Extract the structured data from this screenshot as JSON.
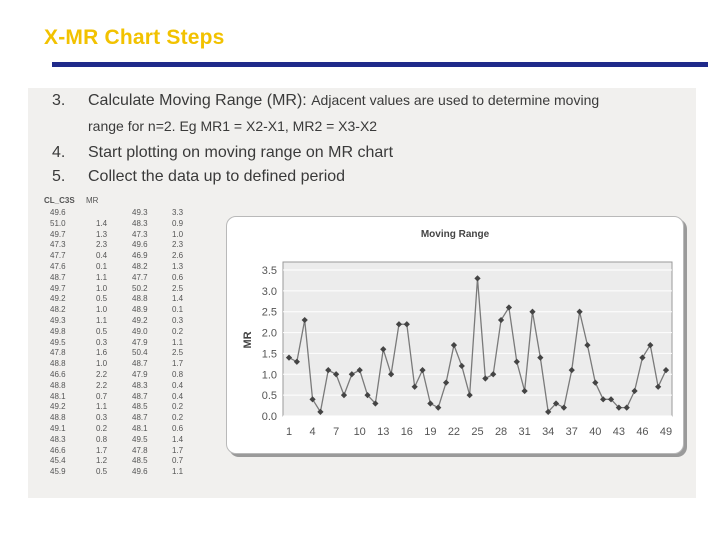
{
  "slide": {
    "title": "X-MR Chart Steps"
  },
  "steps": [
    {
      "num": "3.",
      "text": "Calculate Moving Range (MR): ",
      "tail": "Adjacent values are used to determine moving"
    },
    {
      "num": "",
      "text": "range for n=2.  Eg MR1 = X2-X1, MR2 = X3-X2",
      "tail": ""
    },
    {
      "num": "4.",
      "text": "Start plotting on moving range on MR chart",
      "tail": ""
    },
    {
      "num": "5.",
      "text": "Collect the data up to defined period",
      "tail": ""
    }
  ],
  "table": {
    "headers": [
      "CL_C3S",
      "MR"
    ],
    "left_values": [
      "49.6",
      "51.0",
      "49.7",
      "47.3",
      "47.7",
      "47.6",
      "48.7",
      "49.7",
      "49.2",
      "48.2",
      "49.3",
      "49.8",
      "49.5",
      "47.8",
      "48.8",
      "46.6",
      "48.8",
      "48.1",
      "49.2",
      "48.8",
      "49.1",
      "48.3",
      "46.6",
      "45.4",
      "45.9"
    ],
    "left_mr": [
      "",
      "1.4",
      "1.3",
      "2.3",
      "0.4",
      "0.1",
      "1.1",
      "1.0",
      "0.5",
      "1.0",
      "1.1",
      "0.5",
      "0.3",
      "1.6",
      "1.0",
      "2.2",
      "2.2",
      "0.7",
      "1.1",
      "0.3",
      "0.2",
      "0.8",
      "1.7",
      "1.2",
      "0.5"
    ],
    "right_values": [
      "49.3",
      "48.3",
      "47.3",
      "49.6",
      "46.9",
      "48.2",
      "47.7",
      "50.2",
      "48.8",
      "48.9",
      "49.2",
      "49.0",
      "47.9",
      "50.4",
      "48.7",
      "47.9",
      "48.3",
      "48.7",
      "48.5",
      "48.7",
      "48.1",
      "49.5",
      "47.8",
      "48.5",
      "49.6"
    ],
    "right_mr": [
      "3.3",
      "0.9",
      "1.0",
      "2.3",
      "2.6",
      "1.3",
      "0.6",
      "2.5",
      "1.4",
      "0.1",
      "0.3",
      "0.2",
      "1.1",
      "2.5",
      "1.7",
      "0.8",
      "0.4",
      "0.4",
      "0.2",
      "0.2",
      "0.6",
      "1.4",
      "1.7",
      "0.7",
      "1.1"
    ]
  },
  "chart_data": {
    "type": "line",
    "title": "Moving Range",
    "xlabel": "",
    "ylabel": "MR",
    "x": [
      1,
      2,
      3,
      4,
      5,
      6,
      7,
      8,
      9,
      10,
      11,
      12,
      13,
      14,
      15,
      16,
      17,
      18,
      19,
      20,
      21,
      22,
      23,
      24,
      25,
      26,
      27,
      28,
      29,
      30,
      31,
      32,
      33,
      34,
      35,
      36,
      37,
      38,
      39,
      40,
      41,
      42,
      43,
      44,
      45,
      46,
      47,
      48,
      49
    ],
    "series": [
      {
        "values": [
          1.4,
          1.3,
          2.3,
          0.4,
          0.1,
          1.1,
          1.0,
          0.5,
          1.0,
          1.1,
          0.5,
          0.3,
          1.6,
          1.0,
          2.2,
          2.2,
          0.7,
          1.1,
          0.3,
          0.2,
          0.8,
          1.7,
          1.2,
          0.5,
          3.3,
          0.9,
          1.0,
          2.3,
          2.6,
          1.3,
          0.6,
          2.5,
          1.4,
          0.1,
          0.3,
          0.2,
          1.1,
          2.5,
          1.7,
          0.8,
          0.4,
          0.4,
          0.2,
          0.2,
          0.6,
          1.4,
          1.7,
          0.7,
          1.1
        ]
      }
    ],
    "xticks": [
      1,
      4,
      7,
      10,
      13,
      16,
      19,
      22,
      25,
      28,
      31,
      34,
      37,
      40,
      43,
      46,
      49
    ],
    "yticks": [
      "0.0",
      "0.5",
      "1.0",
      "1.5",
      "2.0",
      "2.5",
      "3.0",
      "3.5"
    ],
    "xlim": [
      1,
      49
    ],
    "ylim": [
      0,
      3.5
    ],
    "grid": true,
    "colors": {
      "line": "#7a7a7a",
      "marker": "#444444",
      "plot_bg": "#ececec",
      "grid": "#ffffff"
    }
  }
}
